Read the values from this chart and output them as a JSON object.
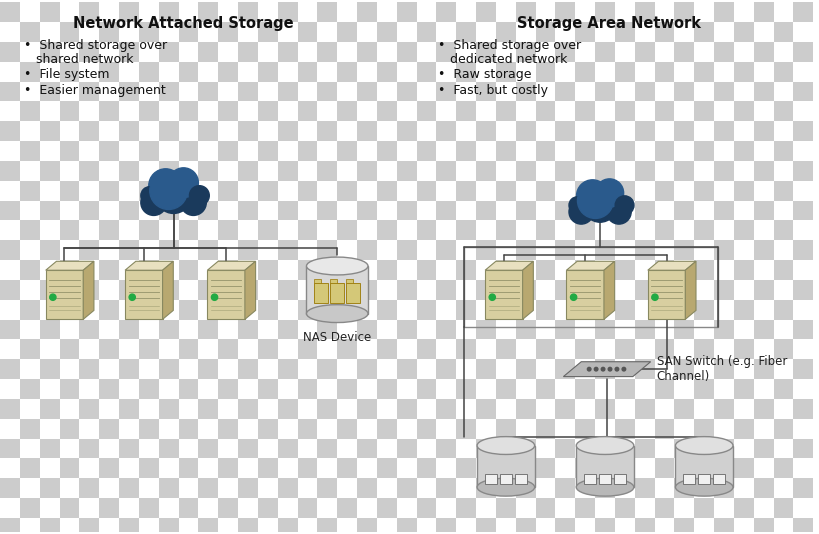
{
  "background_color": "#ffffff",
  "checker_color1": "#cccccc",
  "checker_color2": "#ffffff",
  "nas_title": "Network Attached Storage",
  "san_title": "Storage Area Network",
  "nas_bullets": [
    "Shared storage over\nshared network",
    "File system",
    "Easier management"
  ],
  "san_bullets": [
    "Shared storage over\ndedicated network",
    "Raw storage",
    "Fast, but costly"
  ],
  "nas_device_label": "NAS Device",
  "san_switch_label": "SAN Switch (e.g. Fiber\nChannel)",
  "title_fontsize": 10.5,
  "bullet_fontsize": 9,
  "label_fontsize": 8.5,
  "line_color": "#444444",
  "server_front": "#d8cfa0",
  "server_top": "#e8e0c0",
  "server_side": "#b8a870",
  "server_edge": "#888860",
  "nas_cyl_face": "#d8d8d8",
  "nas_cyl_edge": "#888888",
  "nas_folder_color": "#d4c878",
  "san_cyl_face": "#d0d0d0",
  "san_cyl_edge": "#888888",
  "san_block_color": "#c8c8c8",
  "cloud_color": "#1a3a5c",
  "cloud_highlight": "#2a5a8c",
  "switch_color": "#b8b8b8",
  "switch_edge": "#666666",
  "indicator_color": "#22aa44"
}
